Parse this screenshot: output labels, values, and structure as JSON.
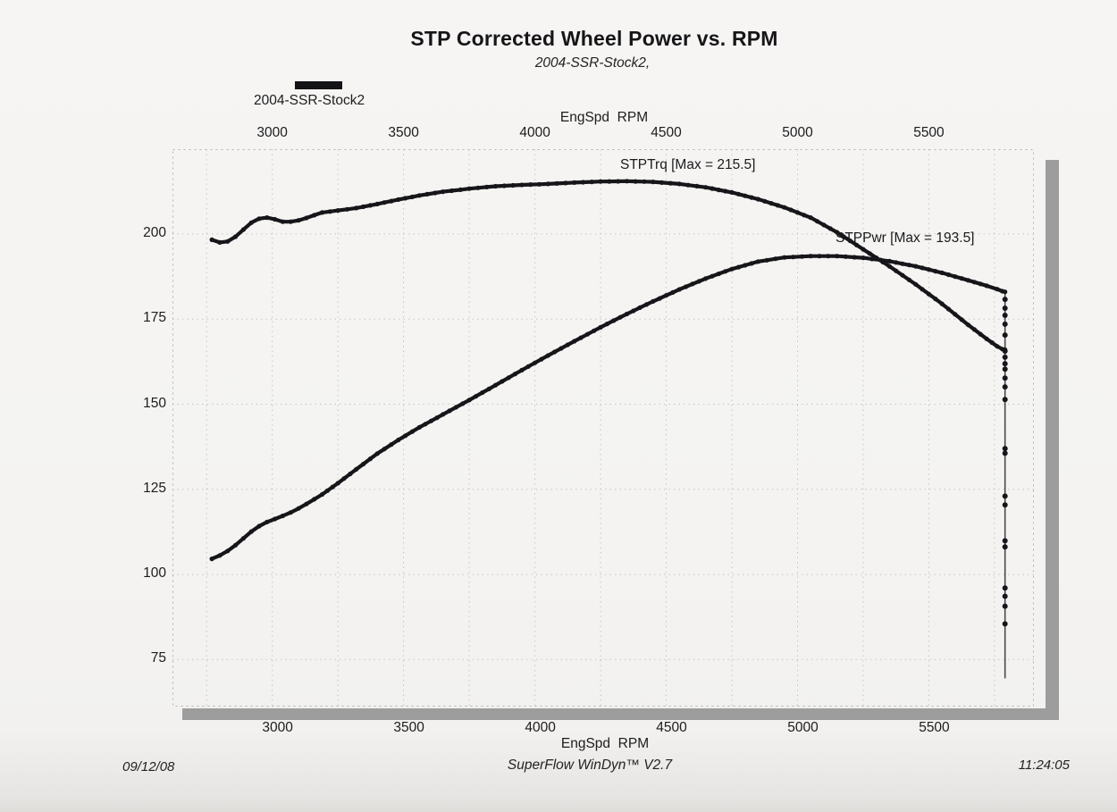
{
  "page": {
    "title": "STP Corrected Wheel Power vs. RPM",
    "subtitle": "2004-SSR-Stock2,"
  },
  "legend": {
    "label": "2004-SSR-Stock2",
    "swatch_color": "#131316"
  },
  "axes": {
    "x_label_top": "EngSpd  RPM",
    "x_label_bottom": "EngSpd  RPM"
  },
  "annotations": {
    "torque_max": "STPTrq [Max = 215.5]",
    "power_max": "STPPwr [Max = 193.5]"
  },
  "footer": {
    "date": "09/12/08",
    "software": "SuperFlow WinDyn™ V2.7",
    "time": "11:24:05"
  },
  "chart_data": {
    "type": "line",
    "title": "STP Corrected Wheel Power vs. RPM",
    "subtitle": "2004-SSR-Stock2,",
    "xlabel": "EngSpd RPM",
    "ylabel": "",
    "x_range": [
      2620,
      5900
    ],
    "y_range": [
      61.2,
      224.9
    ],
    "x_ticks": [
      3000,
      3500,
      4000,
      4500,
      5000,
      5500
    ],
    "y_ticks": [
      200,
      175,
      150,
      125,
      100,
      75
    ],
    "x_grid_step": 250,
    "y_grid_step": 25,
    "grid": true,
    "curve_color": "#16161a",
    "grid_color": "#c6c6c8",
    "series": [
      {
        "name": "STPTrq",
        "max": 215.5,
        "points": [
          [
            2770,
            198.3
          ],
          [
            2800,
            197.5
          ],
          [
            2830,
            197.8
          ],
          [
            2860,
            199.2
          ],
          [
            2890,
            201.3
          ],
          [
            2920,
            203.3
          ],
          [
            2950,
            204.5
          ],
          [
            2980,
            204.8
          ],
          [
            3010,
            204.3
          ],
          [
            3040,
            203.6
          ],
          [
            3070,
            203.6
          ],
          [
            3100,
            204.0
          ],
          [
            3130,
            204.7
          ],
          [
            3160,
            205.5
          ],
          [
            3190,
            206.3
          ],
          [
            3250,
            206.9
          ],
          [
            3320,
            207.6
          ],
          [
            3400,
            208.8
          ],
          [
            3480,
            210.1
          ],
          [
            3560,
            211.3
          ],
          [
            3650,
            212.4
          ],
          [
            3750,
            213.3
          ],
          [
            3850,
            214.0
          ],
          [
            3950,
            214.4
          ],
          [
            4050,
            214.7
          ],
          [
            4150,
            215.1
          ],
          [
            4250,
            215.4
          ],
          [
            4350,
            215.5
          ],
          [
            4450,
            215.3
          ],
          [
            4550,
            214.7
          ],
          [
            4650,
            213.7
          ],
          [
            4750,
            212.2
          ],
          [
            4850,
            210.2
          ],
          [
            4950,
            207.8
          ],
          [
            5050,
            204.8
          ],
          [
            5150,
            200.5
          ],
          [
            5250,
            195.5
          ],
          [
            5350,
            190.5
          ],
          [
            5450,
            185.2
          ],
          [
            5550,
            179.5
          ],
          [
            5650,
            173.3
          ],
          [
            5720,
            169.2
          ],
          [
            5760,
            167.0
          ],
          [
            5780,
            166.2
          ],
          [
            5790,
            166.0
          ]
        ]
      },
      {
        "name": "STPPwr",
        "max": 193.5,
        "points": [
          [
            2770,
            104.6
          ],
          [
            2800,
            105.6
          ],
          [
            2830,
            106.9
          ],
          [
            2860,
            108.6
          ],
          [
            2890,
            110.6
          ],
          [
            2920,
            112.6
          ],
          [
            2950,
            114.2
          ],
          [
            2980,
            115.4
          ],
          [
            3010,
            116.3
          ],
          [
            3040,
            117.2
          ],
          [
            3070,
            118.2
          ],
          [
            3100,
            119.4
          ],
          [
            3130,
            120.7
          ],
          [
            3160,
            122.1
          ],
          [
            3190,
            123.5
          ],
          [
            3250,
            126.8
          ],
          [
            3320,
            130.9
          ],
          [
            3400,
            135.5
          ],
          [
            3480,
            139.5
          ],
          [
            3560,
            143.2
          ],
          [
            3650,
            147.0
          ],
          [
            3750,
            151.2
          ],
          [
            3850,
            155.6
          ],
          [
            3950,
            160.0
          ],
          [
            4050,
            164.3
          ],
          [
            4150,
            168.5
          ],
          [
            4250,
            172.6
          ],
          [
            4350,
            176.5
          ],
          [
            4450,
            180.2
          ],
          [
            4550,
            183.7
          ],
          [
            4650,
            186.9
          ],
          [
            4750,
            189.7
          ],
          [
            4850,
            191.9
          ],
          [
            4950,
            193.1
          ],
          [
            5050,
            193.5
          ],
          [
            5150,
            193.5
          ],
          [
            5250,
            193.0
          ],
          [
            5350,
            192.0
          ],
          [
            5450,
            190.5
          ],
          [
            5550,
            188.6
          ],
          [
            5650,
            186.4
          ],
          [
            5720,
            184.8
          ],
          [
            5760,
            183.8
          ],
          [
            5780,
            183.2
          ],
          [
            5790,
            183.0
          ]
        ]
      }
    ],
    "run_end_tail": {
      "rpm": 5790,
      "top_value": 183.0,
      "bottom_value": 69.5,
      "dot_values": [
        180.8,
        178.2,
        176.1,
        173.5,
        170.3,
        165.6,
        163.8,
        161.9,
        160.3,
        157.7,
        155.1,
        151.4,
        137.0,
        135.6,
        123.0,
        120.4,
        109.9,
        108.1,
        96.0,
        93.6,
        90.7,
        85.5
      ]
    }
  }
}
